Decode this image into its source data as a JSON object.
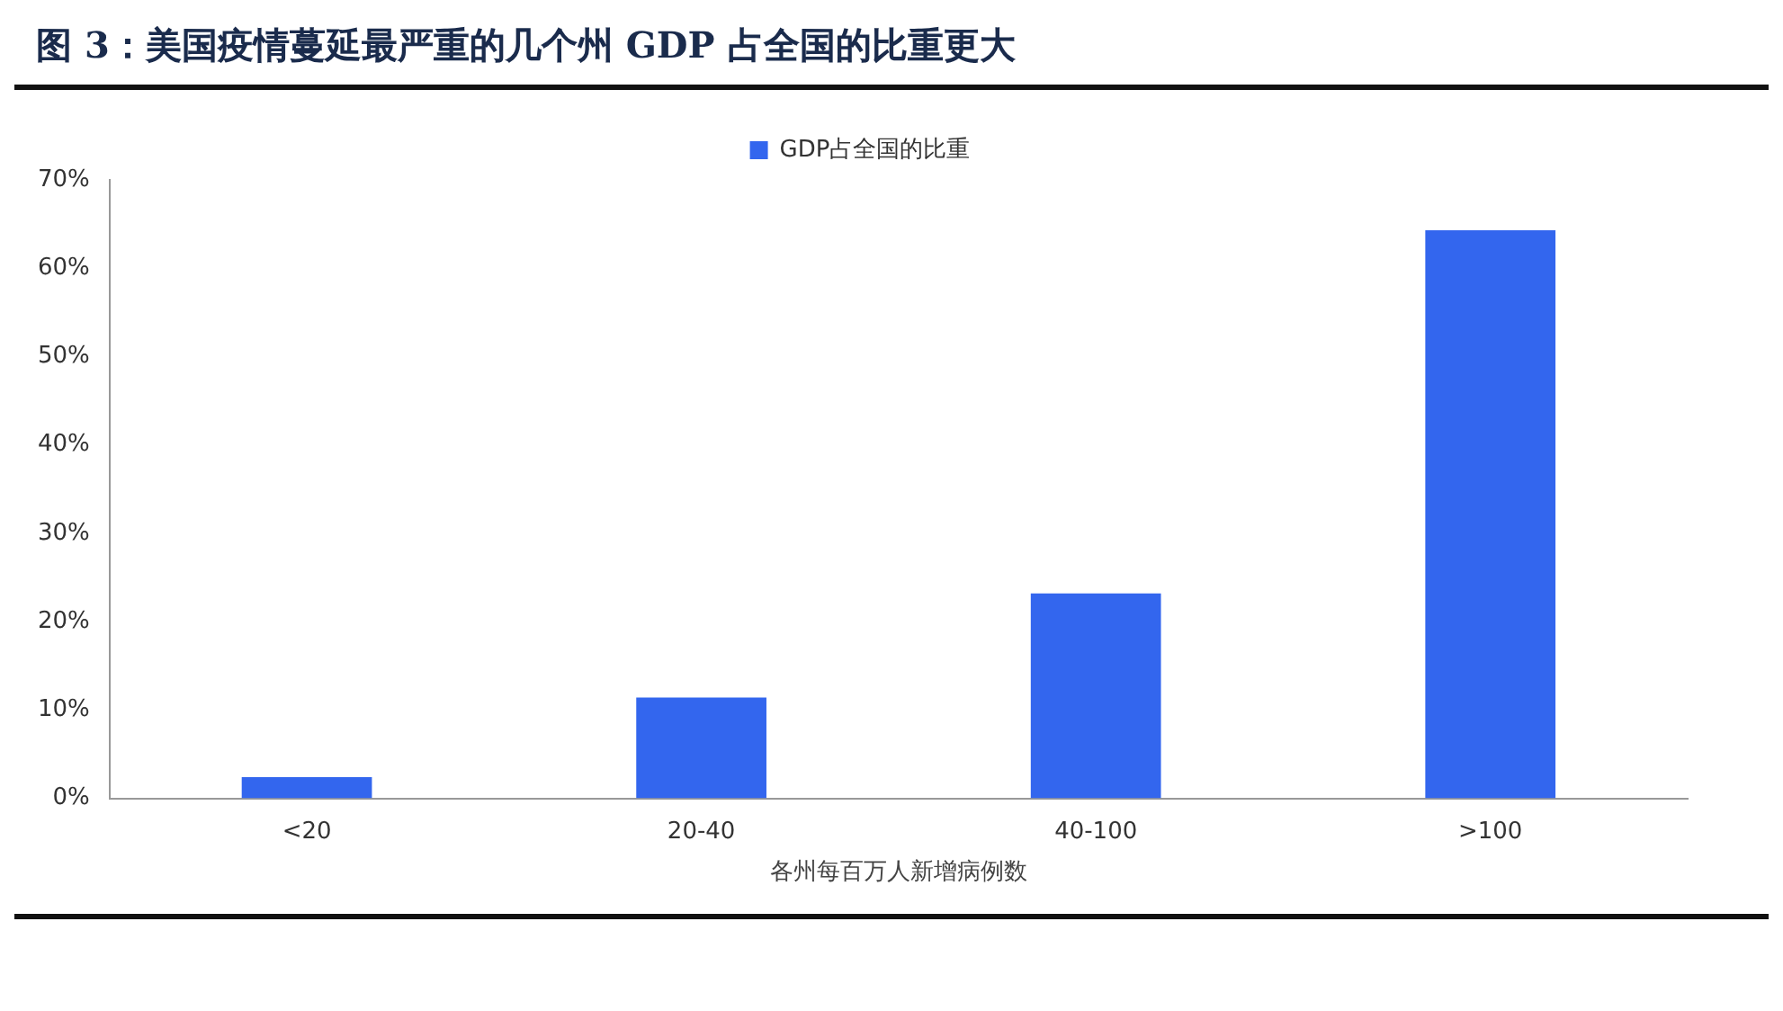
{
  "chart_data": {
    "type": "bar",
    "title": "图 3：美国疫情蔓延最严重的几个州 GDP 占全国的比重更大",
    "xlabel": "各州每百万人新增病例数",
    "categories": [
      "<20",
      "20-40",
      "40-100",
      ">100"
    ],
    "series": [
      {
        "name": "GDP占全国的比重",
        "color": "#3366ee",
        "values": [
          2.4,
          11.4,
          23.2,
          64.3
        ]
      }
    ],
    "ylim": [
      0,
      70
    ],
    "yticks": [
      {
        "value": 0,
        "label": "0%"
      },
      {
        "value": 10,
        "label": "10%"
      },
      {
        "value": 20,
        "label": "20%"
      },
      {
        "value": 30,
        "label": "30%"
      },
      {
        "value": 40,
        "label": "40%"
      },
      {
        "value": 50,
        "label": "50%"
      },
      {
        "value": 60,
        "label": "60%"
      },
      {
        "value": 70,
        "label": "70%"
      }
    ],
    "grid": false,
    "legend": "top"
  }
}
